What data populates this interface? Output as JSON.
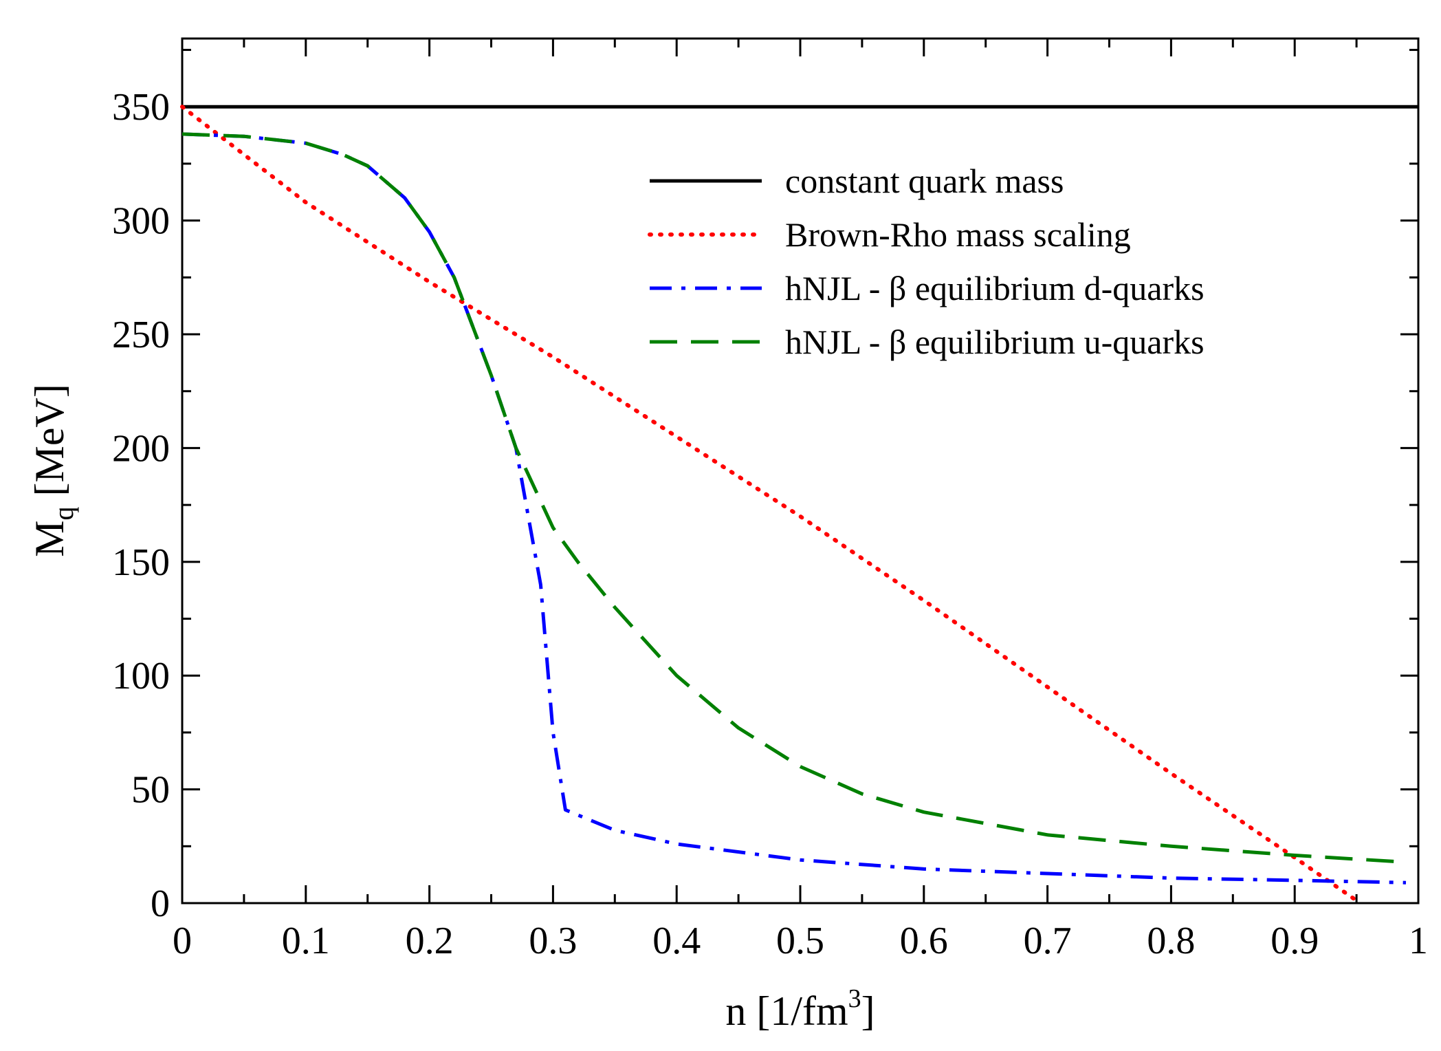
{
  "chart_data": {
    "type": "line",
    "title": "",
    "xlabel": "n [1/fm",
    "xlabel_sup": "3",
    "xlabel_close": "]",
    "ylabel": "M",
    "ylabel_sub": "q",
    "ylabel_rest": " [MeV]",
    "xlim": [
      0,
      1
    ],
    "ylim": [
      0,
      380
    ],
    "xticks": [
      0,
      0.1,
      0.2,
      0.3,
      0.4,
      0.5,
      0.6,
      0.7,
      0.8,
      0.9,
      1
    ],
    "xtick_labels": [
      "0",
      "0.1",
      "0.2",
      "0.3",
      "0.4",
      "0.5",
      "0.6",
      "0.7",
      "0.8",
      "0.9",
      "1"
    ],
    "yticks": [
      0,
      50,
      100,
      150,
      200,
      250,
      300,
      350
    ],
    "ytick_labels": [
      "0",
      "50",
      "100",
      "150",
      "200",
      "250",
      "300",
      "350"
    ],
    "grid": false,
    "legend_position": "top-right",
    "series": [
      {
        "name": "constant quark mass",
        "color": "#000000",
        "style": "solid",
        "x": [
          0,
          1
        ],
        "y": [
          350,
          350
        ]
      },
      {
        "name": "Brown-Rho mass scaling",
        "color": "#ff0000",
        "style": "dotted",
        "x": [
          0,
          0.1,
          0.2,
          0.3,
          0.4,
          0.5,
          0.6,
          0.7,
          0.8,
          0.9,
          0.953
        ],
        "y": [
          350,
          308,
          273,
          240,
          205,
          170,
          133,
          95,
          57,
          20,
          0
        ]
      },
      {
        "name": "hNJL - β equilibrium d-quarks",
        "color": "#0000ff",
        "style": "dashdot",
        "x": [
          0,
          0.05,
          0.1,
          0.13,
          0.15,
          0.18,
          0.2,
          0.22,
          0.25,
          0.27,
          0.28,
          0.29,
          0.3,
          0.31,
          0.35,
          0.4,
          0.5,
          0.6,
          0.7,
          0.8,
          0.9,
          0.99
        ],
        "y": [
          338,
          337,
          334,
          329,
          324,
          310,
          295,
          275,
          232,
          200,
          170,
          140,
          75,
          41,
          32,
          26,
          19,
          15,
          13,
          11,
          10,
          9
        ]
      },
      {
        "name": "hNJL - β equilibrium u-quarks",
        "color": "#008000",
        "style": "dashed",
        "x": [
          0,
          0.05,
          0.1,
          0.13,
          0.15,
          0.18,
          0.2,
          0.22,
          0.25,
          0.27,
          0.3,
          0.32,
          0.35,
          0.4,
          0.45,
          0.5,
          0.55,
          0.6,
          0.7,
          0.8,
          0.9,
          0.99
        ],
        "y": [
          338,
          337,
          334,
          329,
          324,
          310,
          295,
          275,
          232,
          200,
          165,
          150,
          130,
          100,
          77,
          60,
          48,
          40,
          30,
          25,
          21,
          18
        ]
      }
    ]
  }
}
